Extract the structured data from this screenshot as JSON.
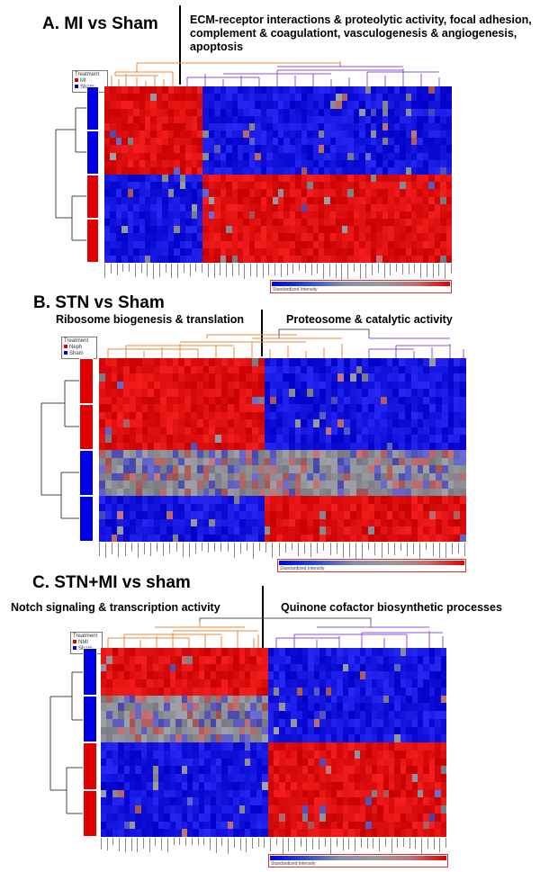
{
  "colors": {
    "red": "#e10000",
    "blue": "#0000e6",
    "grey": "#8c8c8c",
    "orange": "#e88a3c",
    "purple": "#8c4fe0"
  },
  "panels": [
    {
      "title": "A.  MI vs Sham",
      "subtitle_right": "ECM-receptor interactions & proteolytic activity, focal adhesion, complement & coagulationt, vasculogenesis & angiogenesis, apoptosis",
      "legend": {
        "header": "Treatment",
        "items": [
          "MI",
          "Sham"
        ]
      },
      "colorbar_label": "Standardized Intensity",
      "left_fraction": 0.29,
      "rows": [
        "hi-lo",
        "hi-lo",
        "lo-hi",
        "lo-hi"
      ],
      "side_colors": [
        "blue",
        "blue",
        "red",
        "red"
      ]
    },
    {
      "title": "B. STN vs Sham",
      "subtitle_left": "Ribosome biogenesis & translation",
      "subtitle_right": "Proteosome & catalytic activity",
      "legend": {
        "header": "Treatment",
        "items": [
          "Neph",
          "Sham"
        ]
      },
      "colorbar_label": "Standardized Intensity",
      "left_fraction": 0.45,
      "rows": [
        "hi-lo",
        "hi-lo",
        "mid-mid",
        "lo-hi"
      ],
      "side_colors": [
        "red",
        "red",
        "blue",
        "blue"
      ]
    },
    {
      "title": "C. STN+MI vs sham",
      "subtitle_left": "Notch signaling & transcription activity",
      "subtitle_right": "Quinone cofactor biosynthetic processes",
      "legend": {
        "header": "Treatment",
        "items": [
          "NMI",
          "Sham"
        ]
      },
      "colorbar_label": "Standardized Intensity",
      "left_fraction": 0.48,
      "rows": [
        "hi-lo",
        "mid-lo",
        "lo-hi",
        "lo-hi"
      ],
      "side_colors": [
        "blue",
        "blue",
        "red",
        "red"
      ]
    }
  ]
}
